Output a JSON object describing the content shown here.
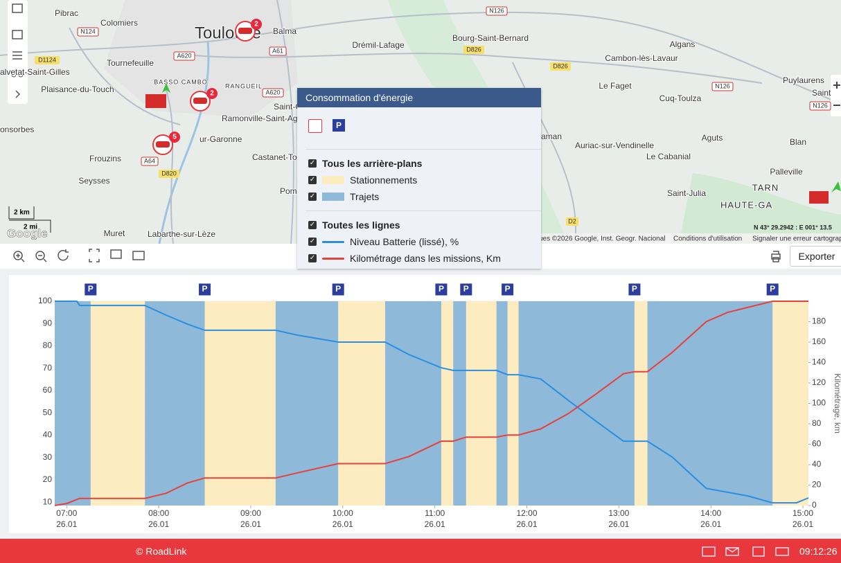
{
  "map": {
    "places": [
      "Pibrac",
      "Colomiers",
      "Toulouse",
      "Balma",
      "Tournefeuille",
      "BASSO CAMBO",
      "RANGUEIL",
      "Plaisance-du-Touch",
      "alvetat-Saint-Gilles",
      "onsorbes",
      "Frouzins",
      "Seysses",
      "Muret",
      "Labarthe-sur-Lèze",
      "Ramonville-Saint-Ag",
      "Castanet-To",
      "Pomp",
      "Saint-O",
      "Drémil-Lafage",
      "Bourg-Saint-Bernard",
      "Algans",
      "Cambon-lès-Lavaur",
      "Le Faget",
      "Cuq-Toulza",
      "Puylaurens",
      "Saint",
      "Auriac-sur-Vendinelle",
      "Le Cabanial",
      "Aguts",
      "Blan",
      "Palleville",
      "Saint-Julia",
      "TARN",
      "HAUTE-GA",
      "aman",
      "ur-Garonne"
    ],
    "roads": [
      "N124",
      "D1124",
      "A620",
      "A61",
      "A620",
      "A64",
      "D820",
      "N126",
      "D826",
      "D826",
      "N126",
      "N126",
      "D2"
    ],
    "badges": [
      "2",
      "2",
      "5"
    ],
    "scale_km": "2 km",
    "scale_mi": "2 mi",
    "logo": "Google",
    "attribution": "ues ©2026 Google, Inst. Geogr. Nacional",
    "terms": "Conditions d'utilisation",
    "report": "Signaler une erreur cartograp",
    "coords": "N 43° 29.2942 : E 001° 13.5"
  },
  "legend_panel": {
    "title": "Consommation d'énergie",
    "icon_p": "P",
    "backgrounds_all": "Tous les arrière-plans",
    "lines_all": "Toutes les lignes"
  },
  "toolbar": {
    "export": "Exporter"
  },
  "chart_data": {
    "type": "line",
    "xlim": [
      6.87,
      15.06
    ],
    "xticks": [
      {
        "value": 7,
        "label": "07:00"
      },
      {
        "value": 8,
        "label": "08:00"
      },
      {
        "value": 9,
        "label": "09:00"
      },
      {
        "value": 10,
        "label": "10:00"
      },
      {
        "value": 11,
        "label": "11:00"
      },
      {
        "value": 12,
        "label": "12:00"
      },
      {
        "value": 13,
        "label": "13:00"
      },
      {
        "value": 14,
        "label": "14:00"
      },
      {
        "value": 15,
        "label": "15:00"
      }
    ],
    "xtick_dates": [
      "26.01",
      "26.01",
      "26.01",
      "26.01",
      "26.01",
      "26.01",
      "26.01",
      "26.01",
      "26.01"
    ],
    "ylim": [
      8.5,
      100
    ],
    "yticks": [
      10,
      20,
      30,
      40,
      50,
      60,
      70,
      80,
      90,
      100
    ],
    "y2lim": [
      0,
      200
    ],
    "y2ticks": [
      0,
      20,
      40,
      60,
      80,
      100,
      120,
      140,
      160,
      180
    ],
    "y2label": "Kilométrage, km",
    "backgrounds": [
      {
        "name": "Stationnements",
        "color": "#fdecc0",
        "intervals": [
          [
            7.26,
            7.85
          ],
          [
            8.5,
            9.27
          ],
          [
            9.95,
            10.46
          ],
          [
            11.07,
            11.2
          ],
          [
            11.34,
            11.67
          ],
          [
            11.79,
            11.91
          ],
          [
            13.17,
            13.31
          ],
          [
            14.67,
            15.06
          ]
        ]
      },
      {
        "name": "Trajets",
        "color": "#8fb9d9",
        "intervals": [
          [
            6.87,
            7.26
          ],
          [
            7.85,
            8.5
          ],
          [
            9.27,
            9.95
          ],
          [
            10.46,
            11.07
          ],
          [
            11.2,
            11.34
          ],
          [
            11.67,
            11.79
          ],
          [
            11.91,
            13.17
          ],
          [
            13.31,
            14.67
          ]
        ]
      }
    ],
    "series": [
      {
        "name": "Niveau Batterie (lissé), %",
        "color": "#2a8fe0",
        "x": [
          6.87,
          7.11,
          7.14,
          7.85,
          8.08,
          8.31,
          8.5,
          9.27,
          9.51,
          9.95,
          10.46,
          10.72,
          11.07,
          11.2,
          11.67,
          11.79,
          11.91,
          12.15,
          12.45,
          12.75,
          13.05,
          13.17,
          13.31,
          13.58,
          13.95,
          14.4,
          14.67,
          14.78,
          14.93,
          15.06
        ],
        "values": [
          100,
          100,
          98.1,
          98.1,
          93.8,
          89.8,
          87,
          87,
          84.8,
          81.7,
          81.7,
          76.1,
          70.2,
          69,
          69,
          67.1,
          67.1,
          65.2,
          55.6,
          46.3,
          37.3,
          37.3,
          37.3,
          30.2,
          16.2,
          12.8,
          9.7,
          9.7,
          9.7,
          11.9
        ]
      },
      {
        "name": "Kilométrage dans les missions, Km",
        "color": "#e8403a",
        "axis": "y2",
        "x": [
          6.87,
          7,
          7.14,
          7.85,
          8.08,
          8.31,
          8.5,
          9.27,
          9.51,
          9.95,
          10.46,
          10.72,
          11.07,
          11.2,
          11.34,
          11.67,
          11.79,
          11.91,
          12.15,
          12.45,
          12.75,
          13.05,
          13.17,
          13.31,
          13.58,
          13.95,
          14.18,
          14.4,
          14.67,
          15.06
        ],
        "values": [
          0,
          2,
          7,
          7,
          12,
          22,
          27,
          27,
          32,
          41,
          41,
          48,
          63,
          63,
          67,
          67,
          69,
          69,
          75,
          90,
          109,
          129,
          131,
          131,
          150,
          180,
          189,
          194,
          200,
          200
        ]
      }
    ]
  },
  "footer": {
    "copyright": "© RoadLink",
    "clock": "09:12:26"
  }
}
